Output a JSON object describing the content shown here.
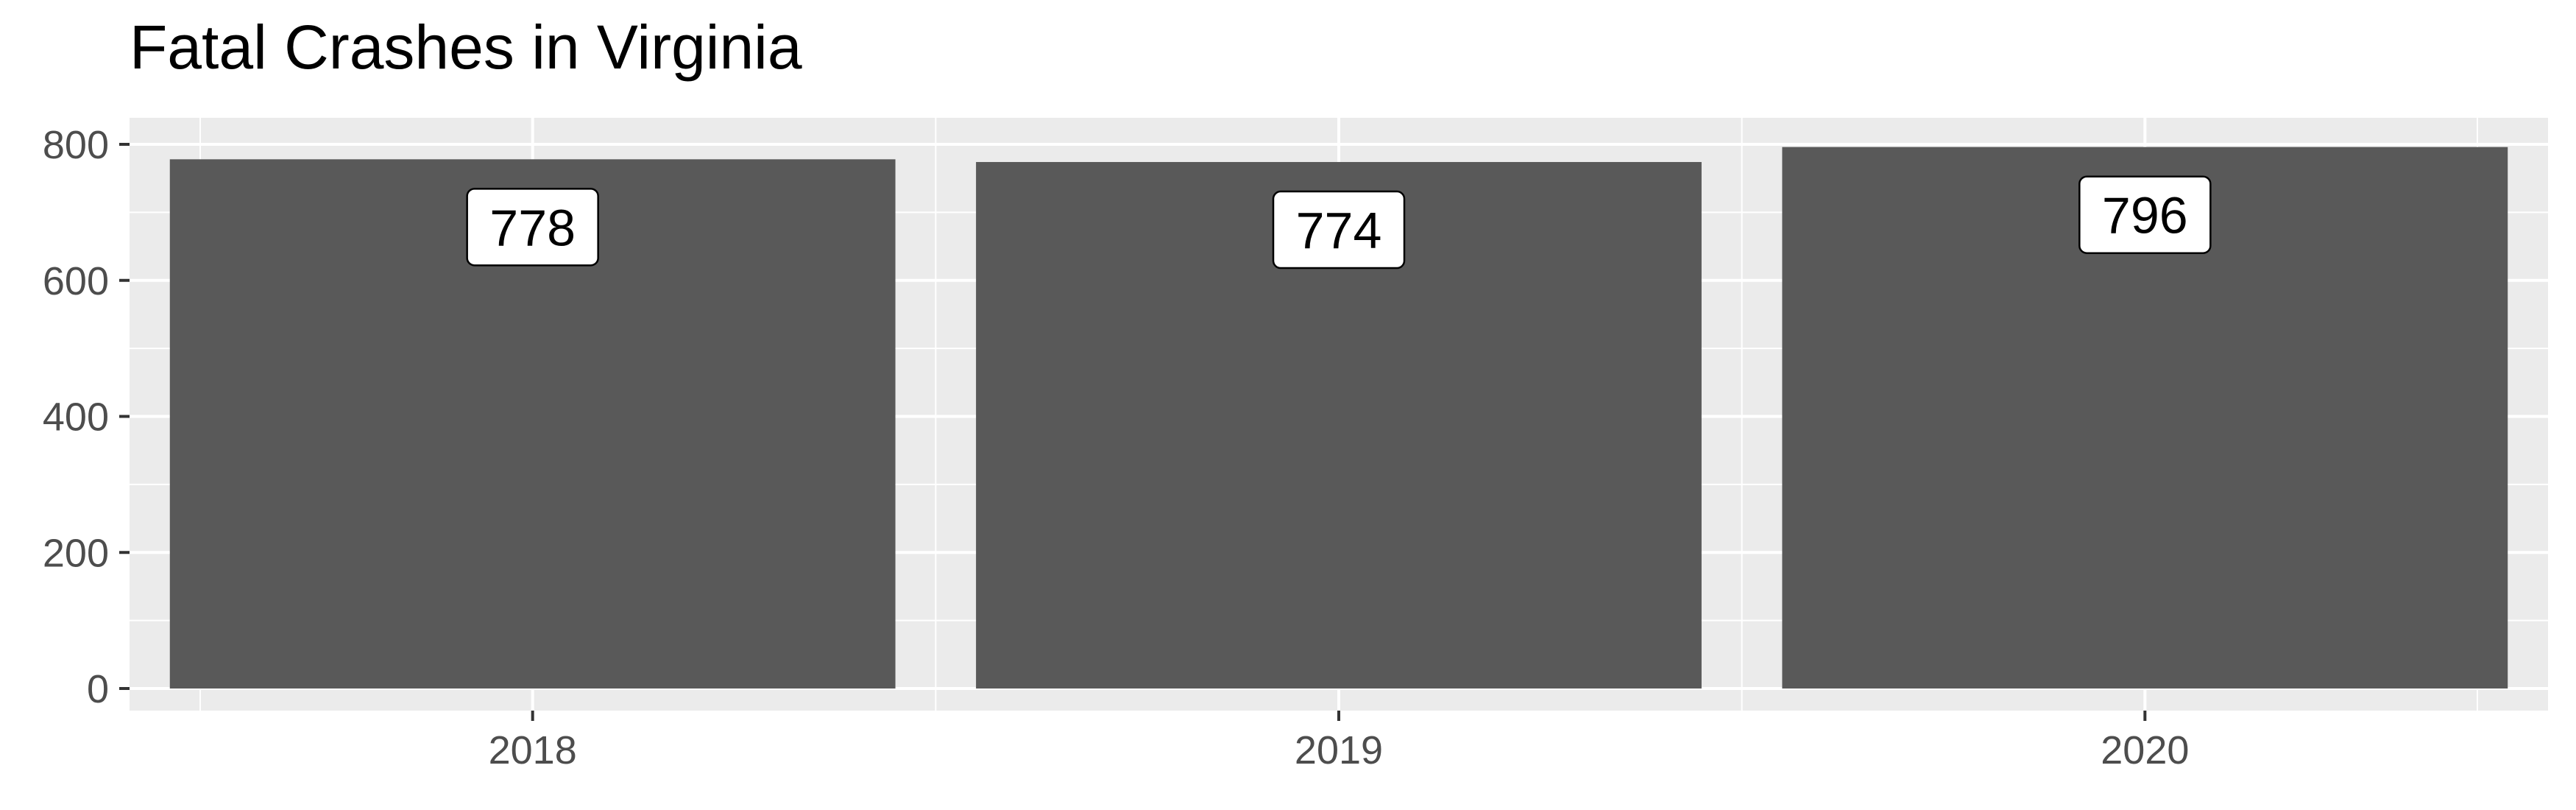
{
  "chart_data": {
    "type": "bar",
    "title": "Fatal Crashes in Virginia",
    "xlabel": "",
    "ylabel": "",
    "categories": [
      "2018",
      "2019",
      "2020"
    ],
    "values": [
      778,
      774,
      796
    ],
    "data_labels": [
      "778",
      "774",
      "796"
    ],
    "ylim": [
      0,
      820
    ],
    "y_ticks": [
      0,
      200,
      400,
      600,
      800
    ],
    "y_tick_labels": [
      "0",
      "200",
      "400",
      "600",
      "800"
    ],
    "grid": true,
    "legend": "none",
    "colors": {
      "bar": "#595959",
      "panel_background": "#ebebeb",
      "grid": "#ffffff",
      "tick_text": "#4d4d4d",
      "label_box_fill": "#ffffff",
      "label_box_border": "#000000"
    }
  }
}
